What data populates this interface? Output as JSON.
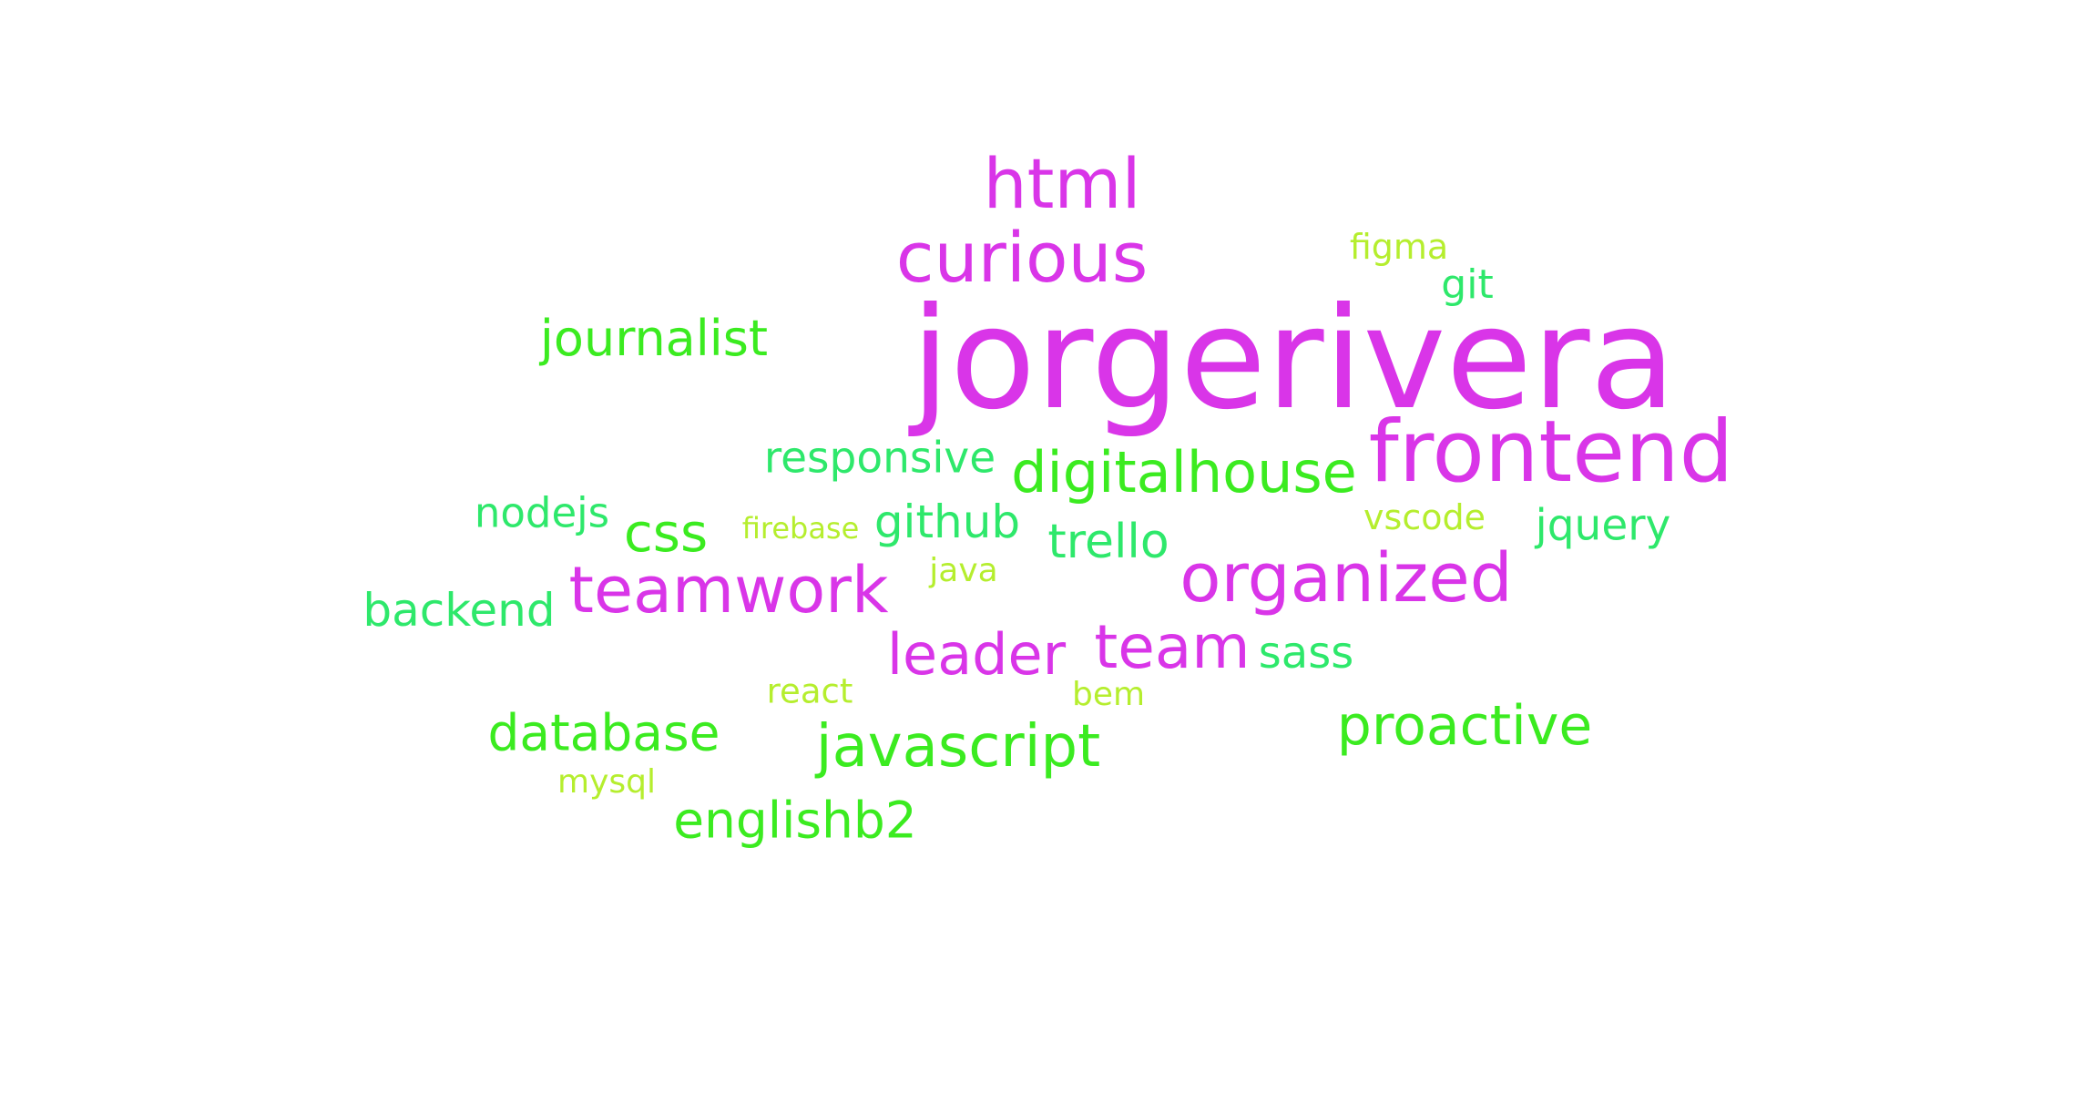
{
  "colors": {
    "magenta": "#D935E8",
    "green": "#3BEB20",
    "spring": "#2EE86B",
    "lime": "#B5EE2E"
  },
  "words": [
    {
      "text": "jorgerivera",
      "color": "magenta"
    },
    {
      "text": "frontend",
      "color": "magenta"
    },
    {
      "text": "curious",
      "color": "magenta"
    },
    {
      "text": "html",
      "color": "magenta"
    },
    {
      "text": "organized",
      "color": "magenta"
    },
    {
      "text": "teamwork",
      "color": "magenta"
    },
    {
      "text": "team",
      "color": "magenta"
    },
    {
      "text": "leader",
      "color": "magenta"
    },
    {
      "text": "digitalhouse",
      "color": "green"
    },
    {
      "text": "javascript",
      "color": "green"
    },
    {
      "text": "proactive",
      "color": "green"
    },
    {
      "text": "journalist",
      "color": "green"
    },
    {
      "text": "database",
      "color": "green"
    },
    {
      "text": "englishb2",
      "color": "green"
    },
    {
      "text": "css",
      "color": "green"
    },
    {
      "text": "github",
      "color": "spring"
    },
    {
      "text": "trello",
      "color": "spring"
    },
    {
      "text": "backend",
      "color": "spring"
    },
    {
      "text": "responsive",
      "color": "spring"
    },
    {
      "text": "nodejs",
      "color": "spring"
    },
    {
      "text": "jquery",
      "color": "spring"
    },
    {
      "text": "sass",
      "color": "spring"
    },
    {
      "text": "git",
      "color": "spring"
    },
    {
      "text": "figma",
      "color": "lime"
    },
    {
      "text": "vscode",
      "color": "lime"
    },
    {
      "text": "firebase",
      "color": "lime"
    },
    {
      "text": "java",
      "color": "lime"
    },
    {
      "text": "react",
      "color": "lime"
    },
    {
      "text": "bem",
      "color": "lime"
    },
    {
      "text": "mysql",
      "color": "lime"
    }
  ]
}
